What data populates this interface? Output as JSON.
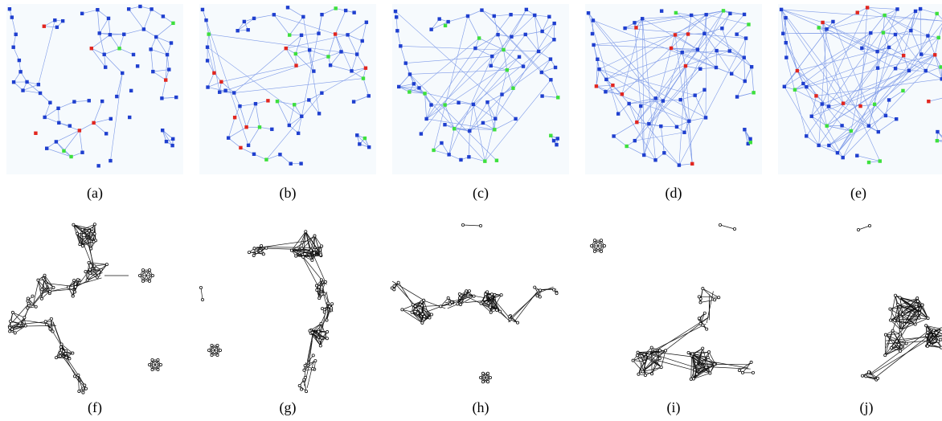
{
  "panels": [
    {
      "label": "(a)",
      "style": "colored-network"
    },
    {
      "label": "(b)",
      "style": "colored-network"
    },
    {
      "label": "(c)",
      "style": "colored-network"
    },
    {
      "label": "(d)",
      "style": "colored-network"
    },
    {
      "label": "(e)",
      "style": "colored-network"
    },
    {
      "label": "(f)",
      "style": "black-network"
    },
    {
      "label": "(g)",
      "style": "black-network"
    },
    {
      "label": "(h)",
      "style": "black-network"
    },
    {
      "label": "(i)",
      "style": "black-network"
    },
    {
      "label": "(j)",
      "style": "black-network"
    }
  ],
  "colors": {
    "node": "#1f3fcf",
    "edge": "#7f9be8",
    "red": "#e2261f",
    "green": "#3de03d",
    "black": "#111111",
    "top_background": "#f6fafd"
  }
}
